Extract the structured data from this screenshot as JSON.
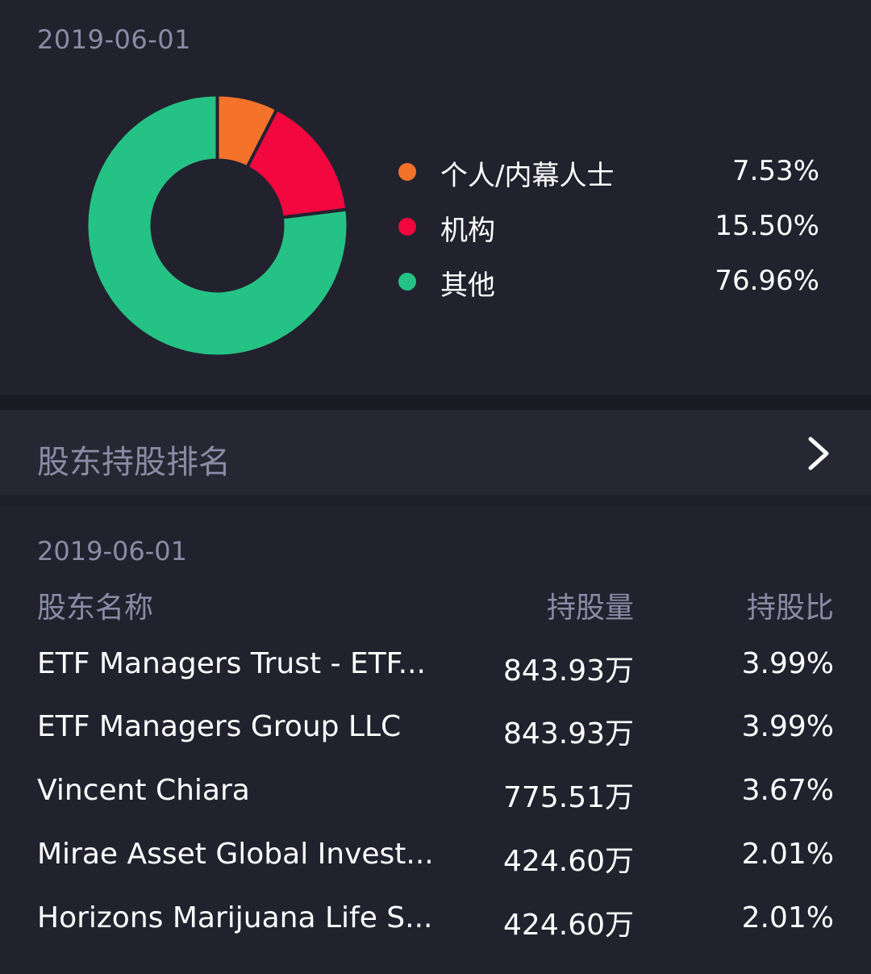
{
  "distribution": {
    "date": "2019-06-01",
    "colors": {
      "individual": "#f5722b",
      "institution": "#f2073f",
      "other": "#25c285"
    },
    "legend": [
      {
        "label": "个人/内幕人士",
        "value": "7.53%",
        "color": "#f5722b"
      },
      {
        "label": "机构",
        "value": "15.50%",
        "color": "#f2073f"
      },
      {
        "label": "其他",
        "value": "76.96%",
        "color": "#25c285"
      }
    ]
  },
  "chart_data": {
    "type": "pie",
    "categories": [
      "个人/内幕人士",
      "机构",
      "其他"
    ],
    "values": [
      7.53,
      15.5,
      76.96
    ],
    "colors": [
      "#f5722b",
      "#f2073f",
      "#25c285"
    ],
    "donut": true
  },
  "ranking": {
    "title": "股东持股排名",
    "chevron_icon": "chevron-right-icon"
  },
  "table": {
    "date": "2019-06-01",
    "headers": {
      "name": "股东名称",
      "shares": "持股量",
      "ratio": "持股比"
    },
    "rows": [
      {
        "name": "ETF Managers Trust - ETF...",
        "shares": "843.93万",
        "ratio": "3.99%"
      },
      {
        "name": "ETF Managers Group LLC",
        "shares": "843.93万",
        "ratio": "3.99%"
      },
      {
        "name": "Vincent Chiara",
        "shares": "775.51万",
        "ratio": "3.67%"
      },
      {
        "name": "Mirae Asset Global Invest...",
        "shares": "424.60万",
        "ratio": "2.01%"
      },
      {
        "name": "Horizons Marijuana Life S...",
        "shares": "424.60万",
        "ratio": "2.01%"
      }
    ]
  }
}
